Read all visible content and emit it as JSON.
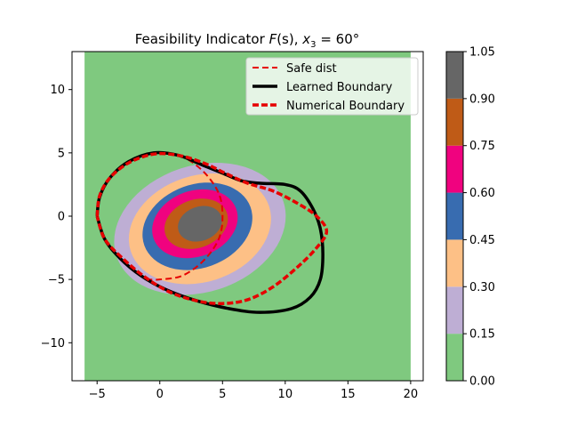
{
  "chart_data": {
    "type": "contour",
    "title": "Feasibility Indicator F(s), x₃ = 60°",
    "title_parts": {
      "prefix": "Feasibility Indicator ",
      "F": "F",
      "s_paren": "(s)",
      "x": "x",
      "sub": "3",
      "equals": " = 60°"
    },
    "xlim": [
      -7,
      21
    ],
    "ylim": [
      -13,
      13
    ],
    "x_ticks": [
      -5,
      0,
      5,
      10,
      15,
      20
    ],
    "y_ticks": [
      -10,
      -5,
      0,
      5,
      10
    ],
    "x_tick_labels": [
      "−5",
      "0",
      "5",
      "10",
      "15",
      "20"
    ],
    "y_tick_labels": [
      "−10",
      "−5",
      "0",
      "5",
      "10"
    ],
    "field_extent": {
      "x": [
        -6,
        20
      ],
      "y": [
        -13,
        13
      ]
    },
    "colorbar": {
      "levels": [
        0.0,
        0.15,
        0.3,
        0.45,
        0.6,
        0.75,
        0.9,
        1.05
      ],
      "tick_labels": [
        "0.00",
        "0.15",
        "0.30",
        "0.45",
        "0.60",
        "0.75",
        "0.90",
        "1.05"
      ],
      "colors": [
        "#7fc97f",
        "#beaed4",
        "#fdc086",
        "#386cb0",
        "#f0027f",
        "#bf5b17",
        "#666666"
      ]
    },
    "contour_bands": [
      {
        "level": 0.15,
        "color": "#beaed4",
        "cx": 3.2,
        "cy": -1.0,
        "rx": 7.0,
        "ry": 5.0,
        "rot": -18
      },
      {
        "level": 0.3,
        "color": "#fdc086",
        "cx": 3.2,
        "cy": -1.0,
        "rx": 5.8,
        "ry": 4.2,
        "rot": -18
      },
      {
        "level": 0.45,
        "color": "#386cb0",
        "cx": 3.0,
        "cy": -0.8,
        "rx": 4.5,
        "ry": 3.3,
        "rot": -20
      },
      {
        "level": 0.6,
        "color": "#f0027f",
        "cx": 2.8,
        "cy": -0.6,
        "rx": 3.5,
        "ry": 2.6,
        "rot": -20
      },
      {
        "level": 0.75,
        "color": "#bf5b17",
        "cx": 2.9,
        "cy": -0.6,
        "rx": 2.6,
        "ry": 1.9,
        "rot": -20
      },
      {
        "level": 0.9,
        "color": "#666666",
        "cx": 3.2,
        "cy": -0.6,
        "rx": 1.8,
        "ry": 1.35,
        "rot": -20
      }
    ],
    "series": [
      {
        "name": "Safe dist",
        "color": "#e60000",
        "style": "dashed",
        "points": [
          [
            0,
            5
          ],
          [
            1.8,
            4.7
          ],
          [
            3.5,
            3.5
          ],
          [
            4.7,
            1.8
          ],
          [
            5,
            0
          ],
          [
            4.7,
            -1.8
          ],
          [
            3.5,
            -3.5
          ],
          [
            1.8,
            -4.7
          ],
          [
            0,
            -5
          ],
          [
            -1,
            -5
          ]
        ]
      },
      {
        "name": "Learned Boundary",
        "color": "#000000",
        "style": "solid",
        "points": [
          [
            -5,
            0
          ],
          [
            -4.8,
            1.5
          ],
          [
            -4,
            3
          ],
          [
            -2.5,
            4.3
          ],
          [
            -0.5,
            5
          ],
          [
            1.5,
            4.8
          ],
          [
            3.5,
            4
          ],
          [
            5,
            3.4
          ],
          [
            6.5,
            2.8
          ],
          [
            8,
            2.6
          ],
          [
            10,
            2.5
          ],
          [
            11.2,
            2
          ],
          [
            12.2,
            0.6
          ],
          [
            12.8,
            -1
          ],
          [
            13,
            -3
          ],
          [
            12.8,
            -5
          ],
          [
            12,
            -6.4
          ],
          [
            10.5,
            -7.3
          ],
          [
            8,
            -7.6
          ],
          [
            5.5,
            -7.3
          ],
          [
            3,
            -6.7
          ],
          [
            0.5,
            -5.8
          ],
          [
            -1.5,
            -4.7
          ],
          [
            -3.2,
            -3.3
          ],
          [
            -4.4,
            -1.8
          ],
          [
            -5,
            0
          ]
        ]
      },
      {
        "name": "Numerical Boundary",
        "color": "#e60000",
        "style": "dashed",
        "points": [
          [
            -5,
            0
          ],
          [
            -4.8,
            1.6
          ],
          [
            -4,
            3
          ],
          [
            -2.5,
            4.2
          ],
          [
            -0.5,
            4.9
          ],
          [
            1.5,
            4.8
          ],
          [
            3.5,
            4.2
          ],
          [
            5.2,
            3.4
          ],
          [
            7,
            2.6
          ],
          [
            9,
            2
          ],
          [
            11,
            1
          ],
          [
            12.5,
            0
          ],
          [
            13.3,
            -1.2
          ],
          [
            12.5,
            -2.5
          ],
          [
            11,
            -4
          ],
          [
            9,
            -5.6
          ],
          [
            7,
            -6.6
          ],
          [
            5,
            -6.9
          ],
          [
            3,
            -6.7
          ],
          [
            0.8,
            -6
          ],
          [
            -1.2,
            -4.8
          ],
          [
            -3,
            -3.3
          ],
          [
            -4.4,
            -1.8
          ],
          [
            -5,
            0
          ]
        ]
      }
    ],
    "legend": {
      "placement": "upper-right",
      "entries": [
        "Safe dist",
        "Learned Boundary",
        "Numerical Boundary"
      ]
    },
    "grid": false
  }
}
